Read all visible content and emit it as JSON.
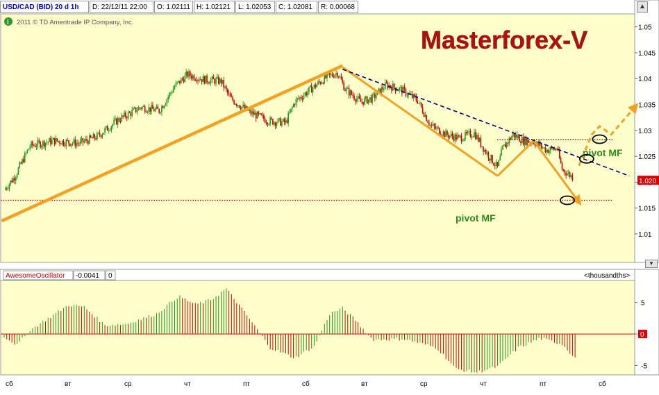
{
  "header": {
    "symbol": "USD/CAD (BID) 20 d 1h",
    "date": "D: 22/12/11 22:00",
    "open": "O: 1.02111",
    "high": "H: 1.02121",
    "low": "L: 1.02053",
    "close": "C: 1.02081",
    "range": "R: 0.00068"
  },
  "copyright": "2011 © TD Ameritrade IP Company, Inc.",
  "watermark": "Masterforex-V",
  "annotations": {
    "pivot_upper": "pivot MF",
    "pivot_lower": "pivot MF"
  },
  "price_axis": {
    "ticks": [
      "1.05",
      "1.045",
      "1.04",
      "1.035",
      "1.03",
      "1.025",
      "1.02",
      "1.015",
      "1.01"
    ],
    "current": "1.020"
  },
  "oscillator": {
    "name": "AwesomeOscillator",
    "value": "-0.0041",
    "extra": "0",
    "units": "<thousandths>",
    "ticks": [
      "5",
      "0",
      "-5"
    ]
  },
  "time_axis": [
    "сб",
    "вт",
    "ср",
    "чт",
    "пт",
    "сб",
    "вт",
    "ср",
    "чт",
    "пт",
    "сб"
  ],
  "colors": {
    "plot_bg": "#ffffcc",
    "up": "#1a9a1a",
    "down": "#cc0000",
    "trend": "#f5a020",
    "channel": "#000080",
    "pivot": "#cc0000",
    "watermark": "#b01010",
    "label": "#2a8a1a"
  },
  "chart_data": [
    {
      "type": "candlestick",
      "title": "USD/CAD (BID) 20 d 1h",
      "ylim": [
        1.0045,
        1.0525
      ],
      "x_labels": [
        "сб",
        "вт",
        "ср",
        "чт",
        "пт",
        "сб",
        "вт",
        "ср",
        "чт",
        "пт",
        "сб"
      ],
      "path_close": [
        [
          0,
          1.0185
        ],
        [
          8,
          1.021
        ],
        [
          20,
          1.027
        ],
        [
          38,
          1.028
        ],
        [
          58,
          1.0275
        ],
        [
          72,
          1.0288
        ],
        [
          88,
          1.032
        ],
        [
          106,
          1.0345
        ],
        [
          120,
          1.0338
        ],
        [
          132,
          1.0385
        ],
        [
          142,
          1.0408
        ],
        [
          155,
          1.0398
        ],
        [
          168,
          1.0395
        ],
        [
          175,
          1.0362
        ],
        [
          190,
          1.0335
        ],
        [
          205,
          1.0318
        ],
        [
          218,
          1.0315
        ],
        [
          225,
          1.0355
        ],
        [
          235,
          1.0375
        ],
        [
          248,
          1.04
        ],
        [
          258,
          1.0412
        ],
        [
          264,
          1.038
        ],
        [
          276,
          1.0355
        ],
        [
          285,
          1.0362
        ],
        [
          296,
          1.0388
        ],
        [
          308,
          1.0378
        ],
        [
          320,
          1.0358
        ],
        [
          330,
          1.031
        ],
        [
          342,
          1.0292
        ],
        [
          352,
          1.0285
        ],
        [
          364,
          1.0295
        ],
        [
          372,
          1.0262
        ],
        [
          382,
          1.0228
        ],
        [
          386,
          1.0265
        ],
        [
          394,
          1.0292
        ],
        [
          402,
          1.028
        ],
        [
          410,
          1.0278
        ],
        [
          420,
          1.0262
        ],
        [
          428,
          1.0265
        ],
        [
          432,
          1.0225
        ],
        [
          440,
          1.021
        ]
      ],
      "trendlines": [
        {
          "from": [
            -2,
            1.0125
          ],
          "to": [
            262,
            1.0425
          ],
          "color": "#f5a020"
        },
        {
          "from": [
            262,
            1.0422
          ],
          "to": [
            382,
            1.0212
          ],
          "color": "#f5a020"
        },
        {
          "from": [
            382,
            1.0212
          ],
          "to": [
            410,
            1.028
          ],
          "color": "#f5a020"
        },
        {
          "from": [
            410,
            1.028
          ],
          "to": [
            446,
            1.0158
          ],
          "color": "#f5a020",
          "arrow": true
        },
        {
          "from": [
            262,
            1.0418
          ],
          "to": [
            484,
            1.0212
          ],
          "color": "#000080",
          "dashed": true
        },
        {
          "from": [
            445,
            1.0232
          ],
          "to": [
            490,
            1.035
          ],
          "color": "#f5a020",
          "dashed": true,
          "arrow": true
        }
      ],
      "levels": [
        {
          "y": 1.0282,
          "label": "pivot MF"
        },
        {
          "y": 1.0165,
          "label": "pivot MF"
        }
      ],
      "markers": [
        [
          461,
          1.0283
        ],
        [
          451,
          1.0245
        ],
        [
          436,
          1.0165
        ]
      ]
    },
    {
      "type": "bar",
      "title": "AwesomeOscillator",
      "ylim": [
        -6.5,
        8.5
      ],
      "anchors": [
        [
          0,
          -0.4
        ],
        [
          10,
          -1.8
        ],
        [
          20,
          0.6
        ],
        [
          35,
          2.6
        ],
        [
          50,
          4.6
        ],
        [
          62,
          4.3
        ],
        [
          78,
          1.4
        ],
        [
          95,
          1.6
        ],
        [
          118,
          3.2
        ],
        [
          135,
          6.0
        ],
        [
          148,
          4.7
        ],
        [
          160,
          5.4
        ],
        [
          172,
          7.2
        ],
        [
          190,
          2.4
        ],
        [
          206,
          -2.2
        ],
        [
          225,
          -3.8
        ],
        [
          240,
          -2.0
        ],
        [
          252,
          3.2
        ],
        [
          262,
          4.1
        ],
        [
          272,
          2.2
        ],
        [
          285,
          -0.9
        ],
        [
          310,
          -0.8
        ],
        [
          335,
          -2.2
        ],
        [
          350,
          -5.6
        ],
        [
          366,
          -6.1
        ],
        [
          382,
          -5.2
        ],
        [
          398,
          -2.2
        ],
        [
          415,
          -0.7
        ],
        [
          432,
          -1.6
        ],
        [
          442,
          -3.8
        ]
      ]
    }
  ]
}
